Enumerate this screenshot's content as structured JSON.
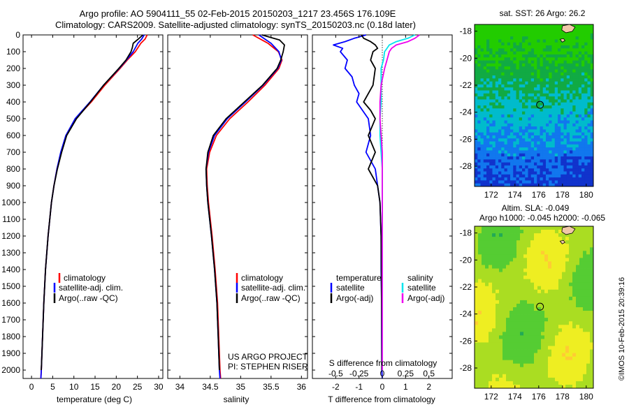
{
  "header": {
    "line1": "Argo profile: AO 5904111_55 02-Feb-2015 20150203_1217 23.456S 176.109E",
    "line2": "Climatology: CARS2009. Satellite-adjusted climatology: synTS_20150203.nc (0.18d later)"
  },
  "credit": {
    "project": "US ARGO PROJECT",
    "pi": "PI: STEPHEN RISER",
    "stamp": "©IMOS 10-Feb-2015 20:39:16"
  },
  "colors": {
    "climatology": "#ff0000",
    "satellite": "#0000ff",
    "argo": "#000000",
    "salinity_satellite": "#00e5ee",
    "salinity_argo": "#ee00ee"
  },
  "chart_data": [
    {
      "type": "line",
      "xlabel": "temperature (deg C)",
      "ylabel": "",
      "xlim": [
        -2,
        31
      ],
      "ylim": [
        2050,
        0
      ],
      "xticks": [
        0,
        5,
        10,
        15,
        20,
        25,
        30
      ],
      "yticks": [
        0,
        100,
        200,
        300,
        400,
        500,
        600,
        700,
        800,
        900,
        1000,
        1100,
        1200,
        1300,
        1400,
        1500,
        1600,
        1700,
        1800,
        1900,
        2000
      ],
      "legend": [
        "climatology",
        "satellite-adj. clim.",
        "Argo(..raw -QC)"
      ],
      "legend_position": "lower-center",
      "series": [
        {
          "name": "climatology",
          "color": "#ff0000",
          "depth": [
            0,
            25,
            50,
            100,
            150,
            200,
            300,
            400,
            500,
            600,
            700,
            800,
            900,
            1000,
            1200,
            1400,
            1600,
            1800,
            2000,
            2050
          ],
          "values": [
            27.3,
            26.8,
            25.8,
            24.5,
            22.6,
            20.9,
            17.3,
            14.1,
            10.4,
            8.2,
            7.0,
            6.0,
            5.3,
            4.7,
            3.9,
            3.3,
            2.9,
            2.6,
            2.3,
            2.2
          ]
        },
        {
          "name": "satellite-adj. clim.",
          "color": "#0000ff",
          "depth": [
            0,
            25,
            50,
            100,
            150,
            200,
            300,
            400,
            500,
            600,
            700,
            800,
            900,
            1000,
            1200,
            1400,
            1600,
            1800,
            2000,
            2050
          ],
          "values": [
            26.6,
            26.0,
            25.1,
            24.0,
            22.4,
            20.7,
            17.0,
            13.8,
            10.3,
            8.1,
            6.9,
            6.0,
            5.3,
            4.7,
            3.9,
            3.3,
            2.9,
            2.6,
            2.3,
            2.2
          ]
        },
        {
          "name": "Argo(..raw -QC)",
          "color": "#000000",
          "depth": [
            0,
            25,
            50,
            75,
            100,
            150,
            200,
            300,
            400,
            500,
            600,
            700,
            800,
            900,
            1000,
            1200,
            1400,
            1600,
            1800,
            2000
          ],
          "values": [
            26.3,
            25.2,
            24.0,
            23.8,
            23.5,
            22.3,
            20.6,
            17.0,
            13.9,
            10.6,
            8.3,
            7.1,
            6.1,
            5.3,
            4.7,
            3.9,
            3.3,
            2.9,
            2.6,
            2.3
          ]
        }
      ]
    },
    {
      "type": "line",
      "xlabel": "salinity",
      "ylabel": "",
      "xlim": [
        33.8,
        36.1
      ],
      "ylim": [
        2050,
        0
      ],
      "xticks": [
        34,
        34.5,
        35,
        35.5,
        36
      ],
      "legend": [
        "climatology",
        "satellite-adj. clim.",
        "Argo(..raw -QC)"
      ],
      "legend_position": "lower-center",
      "series": [
        {
          "name": "climatology",
          "color": "#ff0000",
          "depth": [
            0,
            50,
            100,
            150,
            200,
            300,
            400,
            500,
            600,
            700,
            800,
            900,
            1000,
            1200,
            1400,
            1600,
            1800,
            2000,
            2050
          ],
          "values": [
            35.2,
            35.45,
            35.62,
            35.68,
            35.63,
            35.4,
            35.12,
            34.82,
            34.6,
            34.49,
            34.44,
            34.45,
            34.47,
            34.53,
            34.58,
            34.62,
            34.64,
            34.66,
            34.67
          ]
        },
        {
          "name": "satellite-adj. clim.",
          "color": "#0000ff",
          "depth": [
            0,
            50,
            100,
            150,
            200,
            300,
            400,
            500,
            600,
            700,
            800,
            900,
            1000,
            1200,
            1400,
            1600,
            1800,
            2000,
            2050
          ],
          "values": [
            35.3,
            35.5,
            35.63,
            35.67,
            35.61,
            35.37,
            35.08,
            34.78,
            34.57,
            34.47,
            34.43,
            34.44,
            34.46,
            34.52,
            34.57,
            34.61,
            34.63,
            34.65,
            34.66
          ]
        },
        {
          "name": "Argo(..raw -QC)",
          "color": "#000000",
          "depth": [
            0,
            30,
            60,
            100,
            150,
            200,
            300,
            400,
            500,
            600,
            700,
            800,
            900,
            1000,
            1200,
            1400,
            1600,
            1800,
            2000
          ],
          "values": [
            35.35,
            35.64,
            35.72,
            35.7,
            35.66,
            35.6,
            35.36,
            35.06,
            34.76,
            34.55,
            34.46,
            34.43,
            34.44,
            34.46,
            34.52,
            34.57,
            34.61,
            34.63,
            34.65
          ]
        }
      ]
    },
    {
      "type": "line",
      "xlabel": "T difference from climatology",
      "x2label": "S difference from climatology",
      "ylabel": "",
      "xlim": [
        -3,
        3
      ],
      "ylim": [
        2050,
        0
      ],
      "xticks": [
        -2,
        -1,
        0,
        1,
        2
      ],
      "x2ticks_labels": [
        "-0.5",
        "-0.25",
        "0",
        "0.25",
        "0.5"
      ],
      "x2ticks_values": [
        -2,
        -1,
        0,
        1,
        2
      ],
      "zero_line": "dotted",
      "legend_temperature_title": "temperature",
      "legend_salinity_title": "salinity",
      "legend": [
        "satellite",
        "Argo(-adj)",
        "satellite",
        "Argo(-adj)"
      ],
      "legend_position": "lower-center",
      "series": [
        {
          "name": "temperature satellite",
          "color": "#0000ff",
          "depth": [
            0,
            20,
            40,
            60,
            80,
            100,
            150,
            200,
            250,
            300,
            350,
            400,
            500,
            600,
            700,
            800,
            900,
            1000,
            1200,
            1400,
            1600,
            1800,
            2000,
            2050
          ],
          "values": [
            -0.7,
            -1.2,
            -1.6,
            -2.1,
            -1.7,
            -1.8,
            -1.5,
            -1.6,
            -1.3,
            -1.2,
            -1.0,
            -1.1,
            -0.6,
            -0.5,
            -0.7,
            -0.3,
            -0.2,
            -0.1,
            -0.05,
            -0.05,
            -0.03,
            -0.03,
            -0.02,
            0.0
          ]
        },
        {
          "name": "temperature Argo(-adj)",
          "color": "#000000",
          "depth": [
            0,
            20,
            40,
            60,
            80,
            100,
            150,
            200,
            300,
            400,
            450,
            500,
            600,
            700,
            800,
            850,
            900,
            1000,
            1200,
            1400,
            1600,
            1800,
            2000
          ],
          "values": [
            -0.9,
            -0.8,
            -0.5,
            -0.3,
            -0.2,
            -0.4,
            -0.5,
            -0.3,
            -0.4,
            -0.8,
            -0.5,
            -0.3,
            -0.6,
            -0.3,
            -0.6,
            -0.4,
            -0.2,
            -0.1,
            -0.05,
            -0.04,
            -0.03,
            -0.02,
            -0.02
          ]
        },
        {
          "name": "salinity satellite",
          "color": "#00e5ee",
          "depth": [
            0,
            20,
            40,
            60,
            80,
            100,
            150,
            200,
            300,
            400,
            500,
            600,
            700,
            800,
            900,
            1000,
            1200,
            1400,
            1600,
            1800,
            2000
          ],
          "values": [
            1.4,
            1.1,
            0.6,
            0.3,
            0.2,
            0.1,
            0.05,
            -0.05,
            -0.05,
            -0.05,
            -0.1,
            -0.1,
            -0.05,
            0.0,
            0.0,
            0.0,
            0.0,
            0.0,
            0.0,
            0.0,
            0.0
          ]
        },
        {
          "name": "salinity Argo(-adj)",
          "color": "#ee00ee",
          "depth": [
            0,
            20,
            40,
            60,
            80,
            100,
            150,
            200,
            300,
            400,
            500,
            600,
            700,
            800,
            1000,
            1200,
            1400,
            1600,
            1800,
            2000
          ],
          "values": [
            1.6,
            1.4,
            1.1,
            0.6,
            0.4,
            0.3,
            0.2,
            0.1,
            -0.05,
            -0.1,
            -0.1,
            -0.05,
            0.0,
            0.0,
            0.0,
            0.0,
            0.0,
            0.0,
            0.0,
            0.0
          ]
        }
      ]
    },
    {
      "type": "heatmap",
      "title": "sat. SST: 26  Argo: 26.2",
      "xticks": [
        172,
        174,
        176,
        178,
        180
      ],
      "yticks": [
        -18,
        -20,
        -22,
        -24,
        -26,
        -28
      ],
      "xlim": [
        170.6,
        180.6
      ],
      "ylim": [
        -29.5,
        -17.5
      ],
      "marker": {
        "lon": 176.109,
        "lat": -23.456
      },
      "color_bands": [
        "#22cc00",
        "#11aa44",
        "#00bbcc",
        "#1177ee",
        "#1133cc"
      ]
    },
    {
      "type": "heatmap",
      "title": "Altim. SLA: -0.049",
      "subtitle": "Argo h1000: -0.045 h2000: -0.065",
      "xticks": [
        172,
        174,
        176,
        178,
        180
      ],
      "yticks": [
        -18,
        -20,
        -22,
        -24,
        -26,
        -28
      ],
      "xlim": [
        170.6,
        180.6
      ],
      "ylim": [
        -29.5,
        -17.5
      ],
      "marker": {
        "lon": 176.109,
        "lat": -23.456
      },
      "color_bands": [
        "#ffcc33",
        "#eeee22",
        "#aadd22",
        "#55cc33",
        "#22aa55"
      ]
    }
  ]
}
